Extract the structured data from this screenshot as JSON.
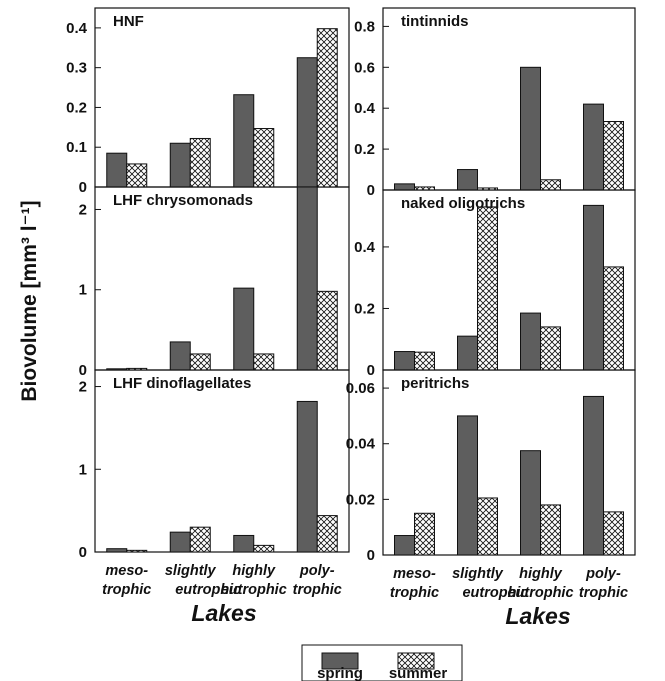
{
  "ylabel": "Biovolume [mm³ l⁻¹]",
  "xlabel": "Lakes",
  "categories": [
    [
      "meso-",
      "trophic"
    ],
    [
      "slightly",
      "eutrophic"
    ],
    [
      "highly",
      "eutrophic"
    ],
    [
      "poly-",
      "trophic"
    ]
  ],
  "legend": {
    "spring": "spring",
    "summer": "summer"
  },
  "colors": {
    "spring": "#5e5e5e",
    "summer_pattern": "crosshatch",
    "axis": "#111111"
  },
  "chart_data": [
    {
      "type": "bar",
      "title": "HNF",
      "series": [
        {
          "name": "spring",
          "values": [
            0.085,
            0.11,
            0.232,
            0.325
          ]
        },
        {
          "name": "summer",
          "values": [
            0.058,
            0.122,
            0.147,
            0.398
          ]
        }
      ],
      "ylim": [
        0,
        0.45
      ],
      "yticks": [
        0,
        0.1,
        0.2,
        0.3,
        0.4
      ],
      "ytick_labels": [
        "0",
        "0.1",
        "0.2",
        "0.3",
        "0.4"
      ]
    },
    {
      "type": "bar",
      "title": "tintinnids",
      "series": [
        {
          "name": "spring",
          "values": [
            0.03,
            0.1,
            0.6,
            0.42
          ]
        },
        {
          "name": "summer",
          "values": [
            0.015,
            0.01,
            0.05,
            0.335
          ]
        }
      ],
      "ylim": [
        0,
        0.89
      ],
      "yticks": [
        0,
        0.2,
        0.4,
        0.6,
        0.8
      ],
      "ytick_labels": [
        "0",
        "0.2",
        "0.4",
        "0.6",
        "0.8"
      ]
    },
    {
      "type": "bar",
      "title": "LHF chrysomonads",
      "series": [
        {
          "name": "spring",
          "values": [
            0.015,
            0.35,
            1.02,
            2.3
          ]
        },
        {
          "name": "summer",
          "values": [
            0.02,
            0.2,
            0.2,
            0.98
          ]
        }
      ],
      "ylim": [
        0,
        2.28
      ],
      "yticks": [
        0,
        1,
        2
      ],
      "ytick_labels": [
        "0",
        "1",
        "2"
      ]
    },
    {
      "type": "bar",
      "title": "naked oligotrichs",
      "series": [
        {
          "name": "spring",
          "values": [
            0.06,
            0.11,
            0.185,
            0.535
          ]
        },
        {
          "name": "summer",
          "values": [
            0.058,
            0.53,
            0.14,
            0.335
          ]
        }
      ],
      "ylim": [
        0,
        0.585
      ],
      "yticks": [
        0,
        0.2,
        0.4
      ],
      "ytick_labels": [
        "0",
        "0.2",
        "0.4"
      ]
    },
    {
      "type": "bar",
      "title": "LHF dinoflagellates",
      "series": [
        {
          "name": "spring",
          "values": [
            0.04,
            0.24,
            0.2,
            1.82
          ]
        },
        {
          "name": "summer",
          "values": [
            0.02,
            0.3,
            0.08,
            0.44
          ]
        }
      ],
      "ylim": [
        0,
        2.2
      ],
      "yticks": [
        0,
        1,
        2
      ],
      "ytick_labels": [
        "0",
        "1",
        "2"
      ]
    },
    {
      "type": "bar",
      "title": "peritrichs",
      "series": [
        {
          "name": "spring",
          "values": [
            0.007,
            0.05,
            0.0375,
            0.057
          ]
        },
        {
          "name": "summer",
          "values": [
            0.015,
            0.0205,
            0.018,
            0.0155
          ]
        }
      ],
      "ylim": [
        0,
        0.0665
      ],
      "yticks": [
        0,
        0.02,
        0.04,
        0.06
      ],
      "ytick_labels": [
        "0",
        "0.02",
        "0.04",
        "0.06"
      ]
    }
  ]
}
